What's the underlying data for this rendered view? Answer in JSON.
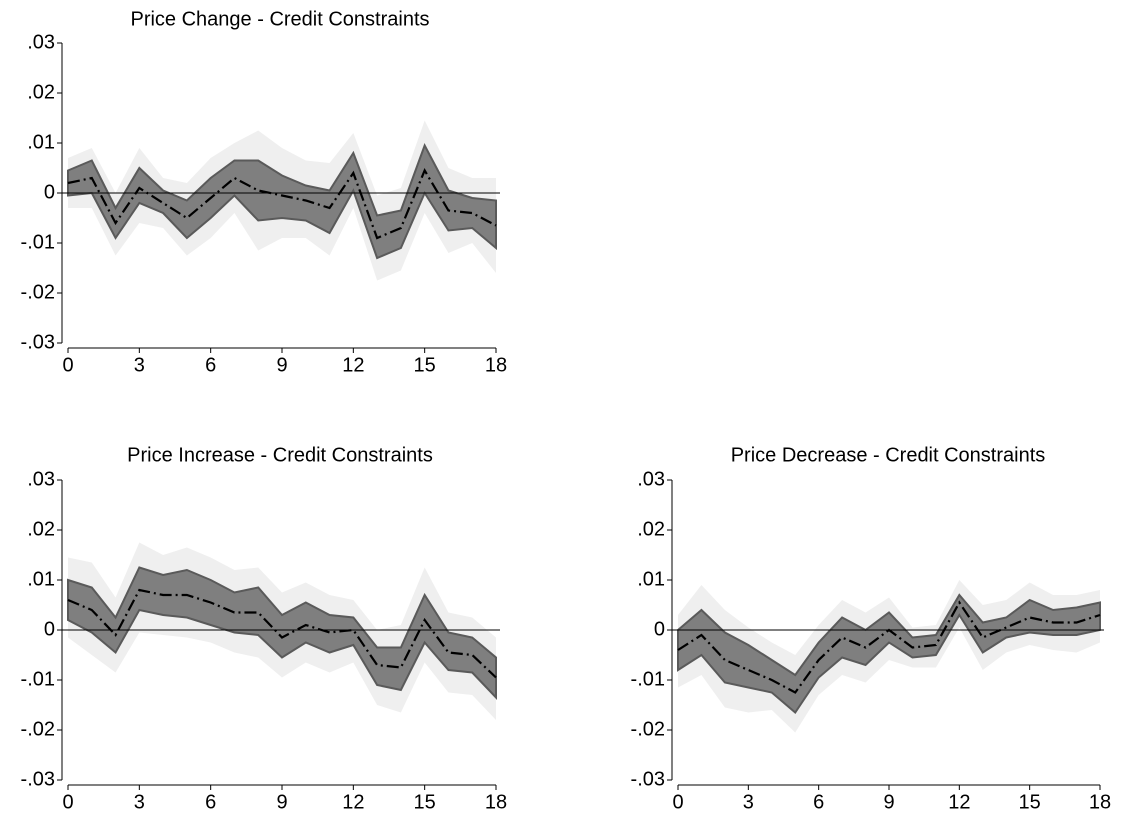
{
  "chart_data": [
    {
      "type": "line",
      "title": "Price Change - Credit Constraints",
      "x": [
        0,
        1,
        2,
        3,
        4,
        5,
        6,
        7,
        8,
        9,
        10,
        11,
        12,
        13,
        14,
        15,
        16,
        17,
        18
      ],
      "xlim": [
        0,
        18
      ],
      "xticks": [
        0,
        3,
        6,
        9,
        12,
        15,
        18
      ],
      "ylim": [
        -0.03,
        0.03
      ],
      "yticks": [
        {
          "value": -0.03,
          "label": "-.03"
        },
        {
          "value": -0.02,
          "label": "-.02"
        },
        {
          "value": -0.01,
          "label": "-.01"
        },
        0,
        {
          "value": 0.01,
          "label": ".01"
        },
        {
          "value": 0.02,
          "label": ".02"
        },
        {
          "value": 0.03,
          "label": ".03"
        }
      ],
      "reference_line": 0,
      "bands": [
        {
          "color": "#efefef",
          "upper": [
            0.007,
            0.009,
            0,
            0.009,
            0.003,
            0.002,
            0.007,
            0.01,
            0.0125,
            0.009,
            0.0065,
            0.006,
            0.012,
            -0.0005,
            0.001,
            0.0145,
            0.005,
            0.003,
            0.003
          ],
          "lower": [
            -0.003,
            -0.003,
            -0.0125,
            -0.006,
            -0.007,
            -0.0125,
            -0.009,
            -0.004,
            -0.0115,
            -0.009,
            -0.009,
            -0.0125,
            -0.003,
            -0.0175,
            -0.0155,
            -0.004,
            -0.012,
            -0.01,
            -0.016
          ]
        },
        {
          "color": "#7f7f7f",
          "upper": [
            0.0045,
            0.0065,
            -0.003,
            0.005,
            0.0005,
            -0.0015,
            0.003,
            0.0065,
            0.0065,
            0.0035,
            0.0015,
            0.0005,
            0.008,
            -0.0045,
            -0.0035,
            0.0095,
            0.0005,
            -0.001,
            -0.0015
          ],
          "lower": [
            -0.0005,
            0,
            -0.009,
            -0.002,
            -0.004,
            -0.009,
            -0.005,
            -0.0005,
            -0.0055,
            -0.005,
            -0.0055,
            -0.008,
            0.0005,
            -0.013,
            -0.011,
            0,
            -0.0075,
            -0.007,
            -0.011
          ]
        }
      ],
      "series": [
        {
          "color": "#000000",
          "values": [
            0.002,
            0.003,
            -0.006,
            0.001,
            -0.002,
            -0.005,
            -0.001,
            0.003,
            0.0005,
            -0.0005,
            -0.0015,
            -0.003,
            0.004,
            -0.009,
            -0.007,
            0.0045,
            -0.0035,
            -0.004,
            -0.0065
          ]
        }
      ]
    },
    {
      "type": "line",
      "title": "Price Increase - Credit Constraints",
      "x": [
        0,
        1,
        2,
        3,
        4,
        5,
        6,
        7,
        8,
        9,
        10,
        11,
        12,
        13,
        14,
        15,
        16,
        17,
        18
      ],
      "xlim": [
        0,
        18
      ],
      "xticks": [
        0,
        3,
        6,
        9,
        12,
        15,
        18
      ],
      "ylim": [
        -0.03,
        0.03
      ],
      "yticks": [
        {
          "value": -0.03,
          "label": "-.03"
        },
        {
          "value": -0.02,
          "label": "-.02"
        },
        {
          "value": -0.01,
          "label": "-.01"
        },
        0,
        {
          "value": 0.01,
          "label": ".01"
        },
        {
          "value": 0.02,
          "label": ".02"
        },
        {
          "value": 0.03,
          "label": ".03"
        }
      ],
      "reference_line": 0,
      "bands": [
        {
          "color": "#efefef",
          "upper": [
            0.0145,
            0.0135,
            0.0065,
            0.0175,
            0.015,
            0.0165,
            0.0145,
            0.012,
            0.0125,
            0.0075,
            0.0095,
            0.007,
            0.006,
            0,
            0.001,
            0.0125,
            0.0035,
            0.0025,
            -0.0015
          ],
          "lower": [
            -0.0015,
            -0.005,
            -0.0085,
            -0.0005,
            -0.001,
            -0.0015,
            -0.0025,
            -0.0045,
            -0.0055,
            -0.0095,
            -0.0065,
            -0.0085,
            -0.0065,
            -0.015,
            -0.0165,
            -0.0065,
            -0.0125,
            -0.013,
            -0.018
          ]
        },
        {
          "color": "#7f7f7f",
          "upper": [
            0.01,
            0.0085,
            0.0025,
            0.0125,
            0.011,
            0.012,
            0.01,
            0.0075,
            0.0085,
            0.003,
            0.0055,
            0.003,
            0.0025,
            -0.0035,
            -0.0035,
            0.007,
            -0.0005,
            -0.0015,
            -0.0055
          ],
          "lower": [
            0.002,
            -0.0005,
            -0.0045,
            0.004,
            0.003,
            0.0025,
            0.001,
            -0.0005,
            -0.001,
            -0.0055,
            -0.0025,
            -0.0045,
            -0.003,
            -0.011,
            -0.012,
            -0.0025,
            -0.008,
            -0.0085,
            -0.0135
          ]
        }
      ],
      "series": [
        {
          "color": "#000000",
          "values": [
            0.006,
            0.004,
            -0.001,
            0.008,
            0.007,
            0.007,
            0.0055,
            0.0035,
            0.0035,
            -0.0015,
            0.001,
            -0.0005,
            0,
            -0.007,
            -0.0075,
            0.002,
            -0.0045,
            -0.005,
            -0.0095
          ]
        }
      ]
    },
    {
      "type": "line",
      "title": "Price Decrease - Credit Constraints",
      "x": [
        0,
        1,
        2,
        3,
        4,
        5,
        6,
        7,
        8,
        9,
        10,
        11,
        12,
        13,
        14,
        15,
        16,
        17,
        18
      ],
      "xlim": [
        0,
        18
      ],
      "xticks": [
        0,
        3,
        6,
        9,
        12,
        15,
        18
      ],
      "ylim": [
        -0.03,
        0.03
      ],
      "yticks": [
        {
          "value": -0.03,
          "label": "-.03"
        },
        {
          "value": -0.02,
          "label": "-.02"
        },
        {
          "value": -0.01,
          "label": "-.01"
        },
        0,
        {
          "value": 0.01,
          "label": ".01"
        },
        {
          "value": 0.02,
          "label": ".02"
        },
        {
          "value": 0.03,
          "label": ".03"
        }
      ],
      "reference_line": 0,
      "bands": [
        {
          "color": "#efefef",
          "upper": [
            0.003,
            0.009,
            0.004,
            0.0005,
            -0.0025,
            -0.005,
            0.001,
            0.006,
            0.0035,
            0.0065,
            0.0005,
            0.001,
            0.01,
            0.005,
            0.006,
            0.0095,
            0.007,
            0.007,
            0.008
          ],
          "lower": [
            -0.0115,
            -0.009,
            -0.0155,
            -0.0165,
            -0.016,
            -0.0205,
            -0.013,
            -0.009,
            -0.0105,
            -0.006,
            -0.0075,
            -0.0075,
            0.0005,
            -0.008,
            -0.0045,
            -0.003,
            -0.004,
            -0.0045,
            -0.0025
          ]
        },
        {
          "color": "#7f7f7f",
          "upper": [
            0,
            0.004,
            -0.0005,
            -0.003,
            -0.006,
            -0.009,
            -0.0025,
            0.0025,
            0,
            0.0035,
            -0.0015,
            -0.001,
            0.007,
            0.0015,
            0.0025,
            0.006,
            0.004,
            0.0045,
            0.0055
          ],
          "lower": [
            -0.008,
            -0.005,
            -0.0105,
            -0.0115,
            -0.0125,
            -0.0165,
            -0.0095,
            -0.0055,
            -0.007,
            -0.0025,
            -0.0055,
            -0.005,
            0.003,
            -0.0045,
            -0.0015,
            -0.0005,
            -0.001,
            -0.001,
            0
          ]
        }
      ],
      "series": [
        {
          "color": "#000000",
          "values": [
            -0.004,
            -0.001,
            -0.006,
            -0.008,
            -0.01,
            -0.0125,
            -0.006,
            -0.0015,
            -0.0035,
            0,
            -0.0035,
            -0.003,
            0.0055,
            -0.0015,
            0.0005,
            0.0025,
            0.0015,
            0.0015,
            0.003
          ]
        }
      ]
    }
  ]
}
